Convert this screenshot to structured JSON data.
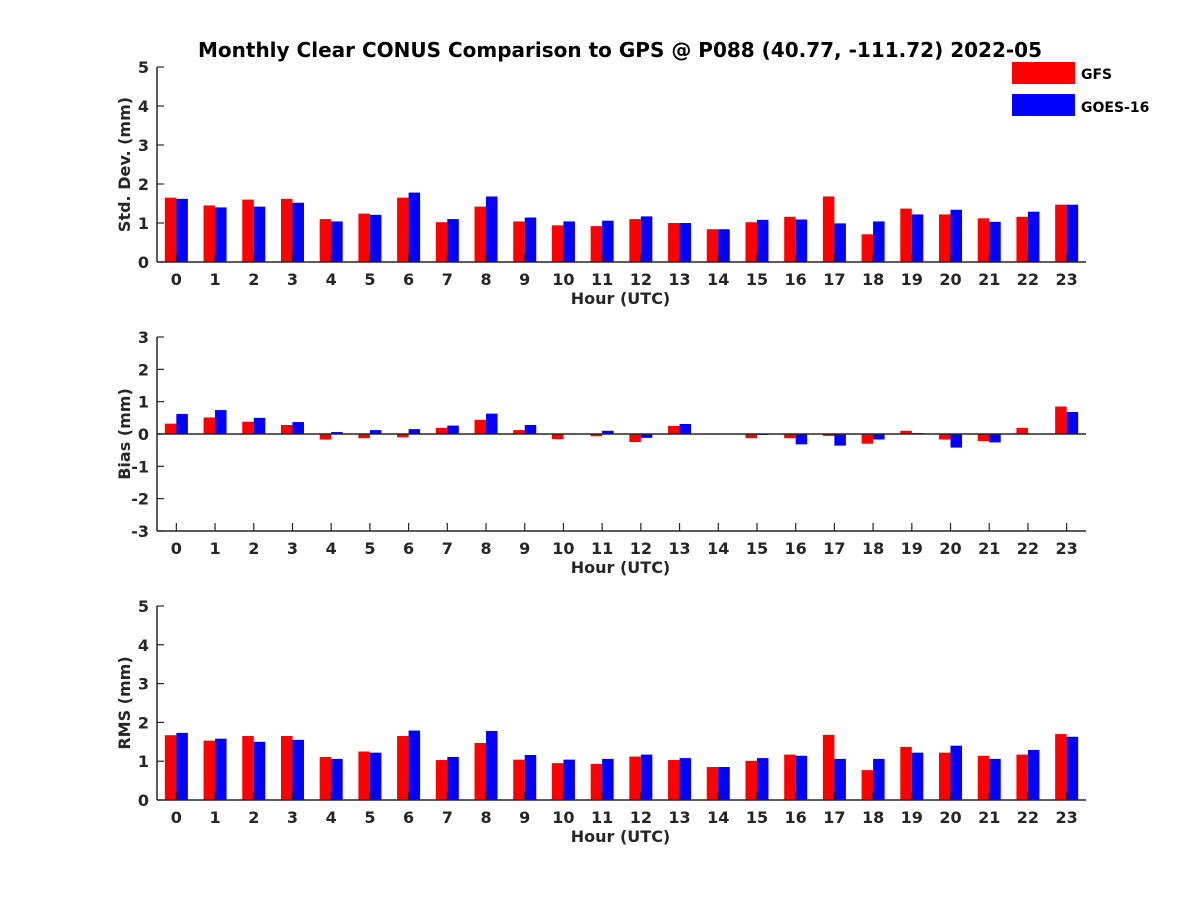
{
  "title": "Monthly Clear CONUS Comparison to GPS @ P088 (40.77, -111.72) 2022-05",
  "legend": [
    {
      "label": "GFS",
      "color": "#ff0000"
    },
    {
      "label": "GOES-16",
      "color": "#0000ff"
    }
  ],
  "colors": {
    "gfs": "#ff0000",
    "goes": "#0000ff",
    "axis": "#262626"
  },
  "chart_data": [
    {
      "type": "bar",
      "xlabel": "Hour (UTC)",
      "ylabel": "Std. Dev. (mm)",
      "ylim": [
        0,
        5
      ],
      "yticks": [
        0,
        1,
        2,
        3,
        4,
        5
      ],
      "categories": [
        "0",
        "1",
        "2",
        "3",
        "4",
        "5",
        "6",
        "7",
        "8",
        "9",
        "10",
        "11",
        "12",
        "13",
        "14",
        "15",
        "16",
        "17",
        "18",
        "19",
        "20",
        "21",
        "22",
        "23"
      ],
      "series": [
        {
          "name": "GFS",
          "values": [
            1.65,
            1.45,
            1.6,
            1.62,
            1.1,
            1.24,
            1.65,
            1.02,
            1.42,
            1.04,
            0.94,
            0.92,
            1.1,
            1.0,
            0.84,
            1.02,
            1.16,
            1.68,
            0.71,
            1.37,
            1.22,
            1.12,
            1.16,
            1.47
          ]
        },
        {
          "name": "GOES-16",
          "values": [
            1.62,
            1.4,
            1.42,
            1.52,
            1.04,
            1.21,
            1.78,
            1.1,
            1.68,
            1.14,
            1.04,
            1.06,
            1.17,
            1.0,
            0.84,
            1.08,
            1.09,
            0.99,
            1.04,
            1.22,
            1.34,
            1.03,
            1.29,
            1.47
          ]
        }
      ]
    },
    {
      "type": "bar",
      "xlabel": "Hour (UTC)",
      "ylabel": "Bias (mm)",
      "ylim": [
        -3,
        3
      ],
      "yticks": [
        -3,
        -2,
        -1,
        0,
        1,
        2,
        3
      ],
      "categories": [
        "0",
        "1",
        "2",
        "3",
        "4",
        "5",
        "6",
        "7",
        "8",
        "9",
        "10",
        "11",
        "12",
        "13",
        "14",
        "15",
        "16",
        "17",
        "18",
        "19",
        "20",
        "21",
        "22",
        "23"
      ],
      "series": [
        {
          "name": "GFS",
          "values": [
            0.32,
            0.51,
            0.38,
            0.28,
            -0.17,
            -0.13,
            -0.1,
            0.19,
            0.44,
            0.12,
            -0.16,
            -0.07,
            -0.25,
            0.25,
            -0.02,
            -0.13,
            -0.13,
            -0.06,
            -0.3,
            0.1,
            -0.17,
            -0.22,
            0.19,
            0.85
          ]
        },
        {
          "name": "GOES-16",
          "values": [
            0.62,
            0.74,
            0.5,
            0.37,
            0.06,
            0.12,
            0.15,
            0.26,
            0.63,
            0.28,
            0.0,
            0.1,
            -0.12,
            0.31,
            0.0,
            -0.03,
            -0.32,
            -0.36,
            -0.17,
            0.03,
            -0.42,
            -0.26,
            0.0,
            0.68
          ]
        }
      ]
    },
    {
      "type": "bar",
      "xlabel": "Hour (UTC)",
      "ylabel": "RMS (mm)",
      "ylim": [
        0,
        5
      ],
      "yticks": [
        0,
        1,
        2,
        3,
        4,
        5
      ],
      "categories": [
        "0",
        "1",
        "2",
        "3",
        "4",
        "5",
        "6",
        "7",
        "8",
        "9",
        "10",
        "11",
        "12",
        "13",
        "14",
        "15",
        "16",
        "17",
        "18",
        "19",
        "20",
        "21",
        "22",
        "23"
      ],
      "series": [
        {
          "name": "GFS",
          "values": [
            1.67,
            1.53,
            1.65,
            1.65,
            1.11,
            1.25,
            1.65,
            1.03,
            1.47,
            1.04,
            0.95,
            0.93,
            1.12,
            1.03,
            0.85,
            1.01,
            1.17,
            1.68,
            0.77,
            1.37,
            1.22,
            1.14,
            1.17,
            1.7
          ]
        },
        {
          "name": "GOES-16",
          "values": [
            1.73,
            1.58,
            1.5,
            1.55,
            1.06,
            1.22,
            1.79,
            1.11,
            1.78,
            1.16,
            1.04,
            1.06,
            1.17,
            1.08,
            0.85,
            1.08,
            1.14,
            1.06,
            1.06,
            1.22,
            1.4,
            1.06,
            1.29,
            1.63
          ]
        }
      ]
    }
  ]
}
